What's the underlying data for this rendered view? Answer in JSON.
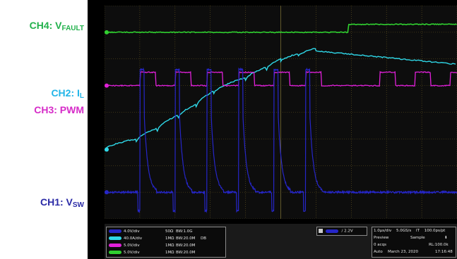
{
  "labels": {
    "ch4": {
      "main": "CH4: V",
      "sub": "FAULT"
    },
    "ch2": {
      "main": "CH2: I",
      "sub": "L"
    },
    "ch3": {
      "main": "CH3: PWM"
    },
    "ch1": {
      "main": "CH1: V",
      "sub": "SW"
    }
  },
  "colors": {
    "ch1": "#2626c8",
    "ch2": "#2fd8e8",
    "ch3": "#e020d8",
    "ch4": "#30d030",
    "grid": "#6a5a20",
    "screen_bg": "#0d0d0d"
  },
  "channels": [
    {
      "pill": "4.0V/div",
      "coupling": "50Ω",
      "bw": "BW:1.0G",
      "color": "#2626c8"
    },
    {
      "pill": "40.0A/div",
      "coupling": "1MΩ",
      "bw": "BW:20.0M",
      "extra": "DB",
      "color": "#2fd8e8"
    },
    {
      "pill": "5.0V/div",
      "coupling": "1MΩ",
      "bw": "BW:20.0M",
      "color": "#e020d8"
    },
    {
      "pill": "5.0V/div",
      "coupling": "1MΩ",
      "bw": "BW:20.0M",
      "color": "#30d030"
    }
  ],
  "trigger": {
    "level": "2.2V"
  },
  "acquisition": {
    "timebase": "1.0µs/div",
    "sample_rate": "5.0GS/s",
    "interval_label": "IT",
    "interval": "100.0ps/pt",
    "mode": "Preview",
    "sample_mode": "Sample",
    "acqs": "0 acqs",
    "record_length": "RL:100.0k",
    "run_mode": "Auto",
    "date": "March 23, 2020",
    "time": "17:16:48"
  },
  "chart_data": {
    "type": "line",
    "x_unit": "µs",
    "x_range": [
      -5,
      5
    ],
    "x_divisions": 10,
    "y_divisions": 8,
    "grid": true,
    "series": [
      {
        "id": "ch4",
        "name": "CH4: VFAULT",
        "kind": "step",
        "low_level": 7.0,
        "high_level": 7.3,
        "step_at": 1.9
      },
      {
        "id": "ch2",
        "name": "CH2: IL",
        "kind": "ramp-sawtooth",
        "start": 2.6,
        "peak_times": [
          -4.1,
          -3.5,
          -2.9,
          -2.4,
          -1.9,
          -1.0,
          -0.4,
          0.0,
          0.5,
          1.0
        ],
        "peak_levels": [
          3.0,
          3.4,
          3.9,
          4.3,
          4.8,
          5.3,
          5.7,
          6.0,
          6.2,
          6.4
        ],
        "end_level": 5.8
      },
      {
        "id": "ch3",
        "name": "CH3: PWM",
        "kind": "pulse",
        "low_level": 5.0,
        "high_level": 5.5,
        "rising_edges": [
          -4.0,
          -3.0,
          -2.1,
          -1.2,
          -0.2,
          0.7,
          2.8,
          3.8,
          4.8
        ],
        "pulse_width": 0.45
      },
      {
        "id": "ch1",
        "name": "CH1: VSW",
        "kind": "switching",
        "baseline": 1.0,
        "peak_level": 5.6,
        "dip_level": 0.3,
        "events": [
          -4.0,
          -3.0,
          -2.1,
          -1.2,
          -0.2,
          0.7
        ],
        "event_width": 0.12
      }
    ]
  }
}
